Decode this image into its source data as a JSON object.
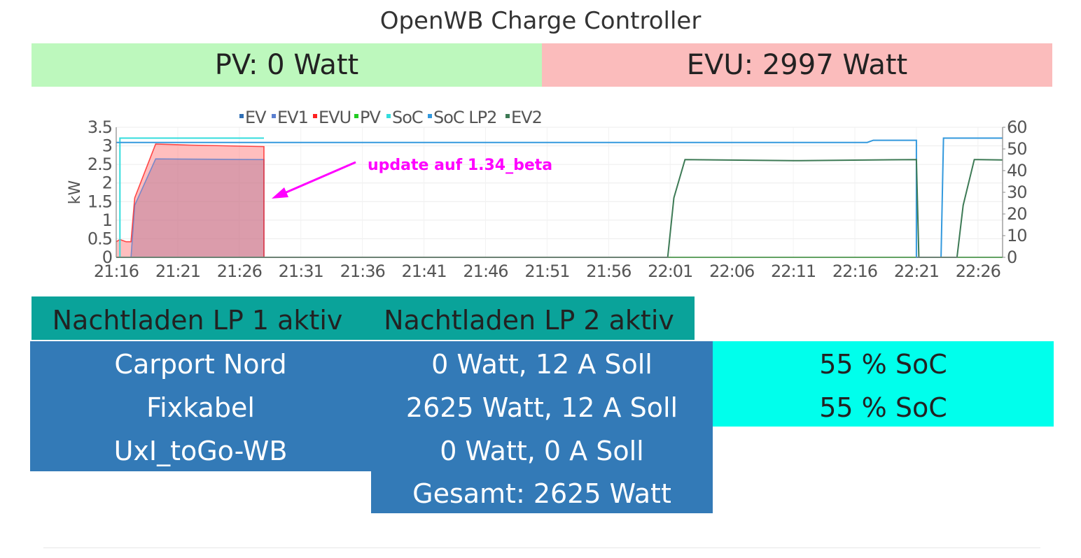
{
  "page": {
    "title": "OpenWB Charge Controller"
  },
  "status": {
    "pv": "PV: 0 Watt",
    "evu": "EVU: 2997 Watt"
  },
  "colors": {
    "pv_bg": "#bdf8bd",
    "evu_bg": "#fbbcbc",
    "nacht_bg": "#0aa39a",
    "lp_bg": "#337ab7",
    "soc_bg": "#00ffec"
  },
  "chart_data": {
    "type": "line",
    "legend_position": "top",
    "y_left": {
      "label": "kW",
      "ticks": [
        "0",
        "0.5",
        "1",
        "1.5",
        "2",
        "2.5",
        "3",
        "3.5"
      ],
      "range": [
        0,
        3.5
      ]
    },
    "y_right": {
      "ticks": [
        "0",
        "10",
        "20",
        "30",
        "40",
        "50",
        "60"
      ],
      "range": [
        0,
        60
      ]
    },
    "x_ticks": [
      "21:16",
      "21:21",
      "21:26",
      "21:31",
      "21:36",
      "21:41",
      "21:46",
      "21:51",
      "21:56",
      "22:01",
      "22:06",
      "22:11",
      "22:16",
      "22:21",
      "22:26"
    ],
    "x_range_minutes": [
      0,
      72
    ],
    "annotation": {
      "text": "update auf 1.34_beta",
      "color": "#ff00ff"
    },
    "series": [
      {
        "name": "EV",
        "color": "#2f6fb5",
        "axis": "left",
        "type": "line",
        "points": [
          [
            0,
            0
          ],
          [
            72,
            0
          ]
        ]
      },
      {
        "name": "EV1",
        "color": "#5b7fd0",
        "axis": "left",
        "type": "area",
        "points": [
          [
            0,
            0
          ],
          [
            1.2,
            0
          ],
          [
            1.5,
            1.4
          ],
          [
            3.2,
            2.65
          ],
          [
            12,
            2.63
          ],
          [
            12,
            0
          ]
        ]
      },
      {
        "name": "EVU",
        "color": "#ff2020",
        "axis": "left",
        "type": "area",
        "points": [
          [
            0,
            0.42
          ],
          [
            0.3,
            0.48
          ],
          [
            0.8,
            0.42
          ],
          [
            1.2,
            0.42
          ],
          [
            1.5,
            1.6
          ],
          [
            3.2,
            3.05
          ],
          [
            6,
            3.02
          ],
          [
            12,
            2.98
          ],
          [
            12,
            0
          ]
        ]
      },
      {
        "name": "PV",
        "color": "#22cc22",
        "axis": "left",
        "type": "line",
        "points": [
          [
            0,
            0
          ],
          [
            72,
            0
          ]
        ]
      },
      {
        "name": "SoC",
        "color": "#33dddd",
        "axis": "right",
        "type": "line",
        "points": [
          [
            0,
            0
          ],
          [
            0.3,
            0
          ],
          [
            0.3,
            55
          ],
          [
            12,
            55
          ]
        ]
      },
      {
        "name": "SoC LP2",
        "color": "#3399dd",
        "axis": "right",
        "type": "line",
        "points": [
          [
            0,
            53
          ],
          [
            61,
            53
          ],
          [
            61.5,
            54
          ],
          [
            65,
            54
          ],
          [
            65,
            0
          ],
          [
            67,
            0
          ],
          [
            67.2,
            55
          ],
          [
            72,
            55
          ]
        ]
      },
      {
        "name": "EV2",
        "color": "#3d7a55",
        "axis": "left",
        "type": "line",
        "points": [
          [
            0,
            0
          ],
          [
            44.8,
            0
          ],
          [
            45.3,
            1.6
          ],
          [
            46.2,
            2.63
          ],
          [
            55,
            2.6
          ],
          [
            65,
            2.63
          ],
          [
            65.2,
            0
          ],
          [
            68.3,
            0
          ],
          [
            68.8,
            1.4
          ],
          [
            69.7,
            2.63
          ],
          [
            72,
            2.62
          ]
        ]
      }
    ]
  },
  "nachtladen": {
    "lp1": "Nachtladen LP 1 aktiv",
    "lp2": "Nachtladen LP 2 aktiv"
  },
  "loadpoints": [
    {
      "name": "Carport Nord",
      "power": "0 Watt, 12 A Soll",
      "soc": "55 % SoC"
    },
    {
      "name": "Fixkabel",
      "power": "2625 Watt, 12 A Soll",
      "soc": "55 % SoC"
    },
    {
      "name": "UxI_toGo-WB",
      "power": "0 Watt, 0 A Soll"
    }
  ],
  "total": "Gesamt: 2625 Watt"
}
